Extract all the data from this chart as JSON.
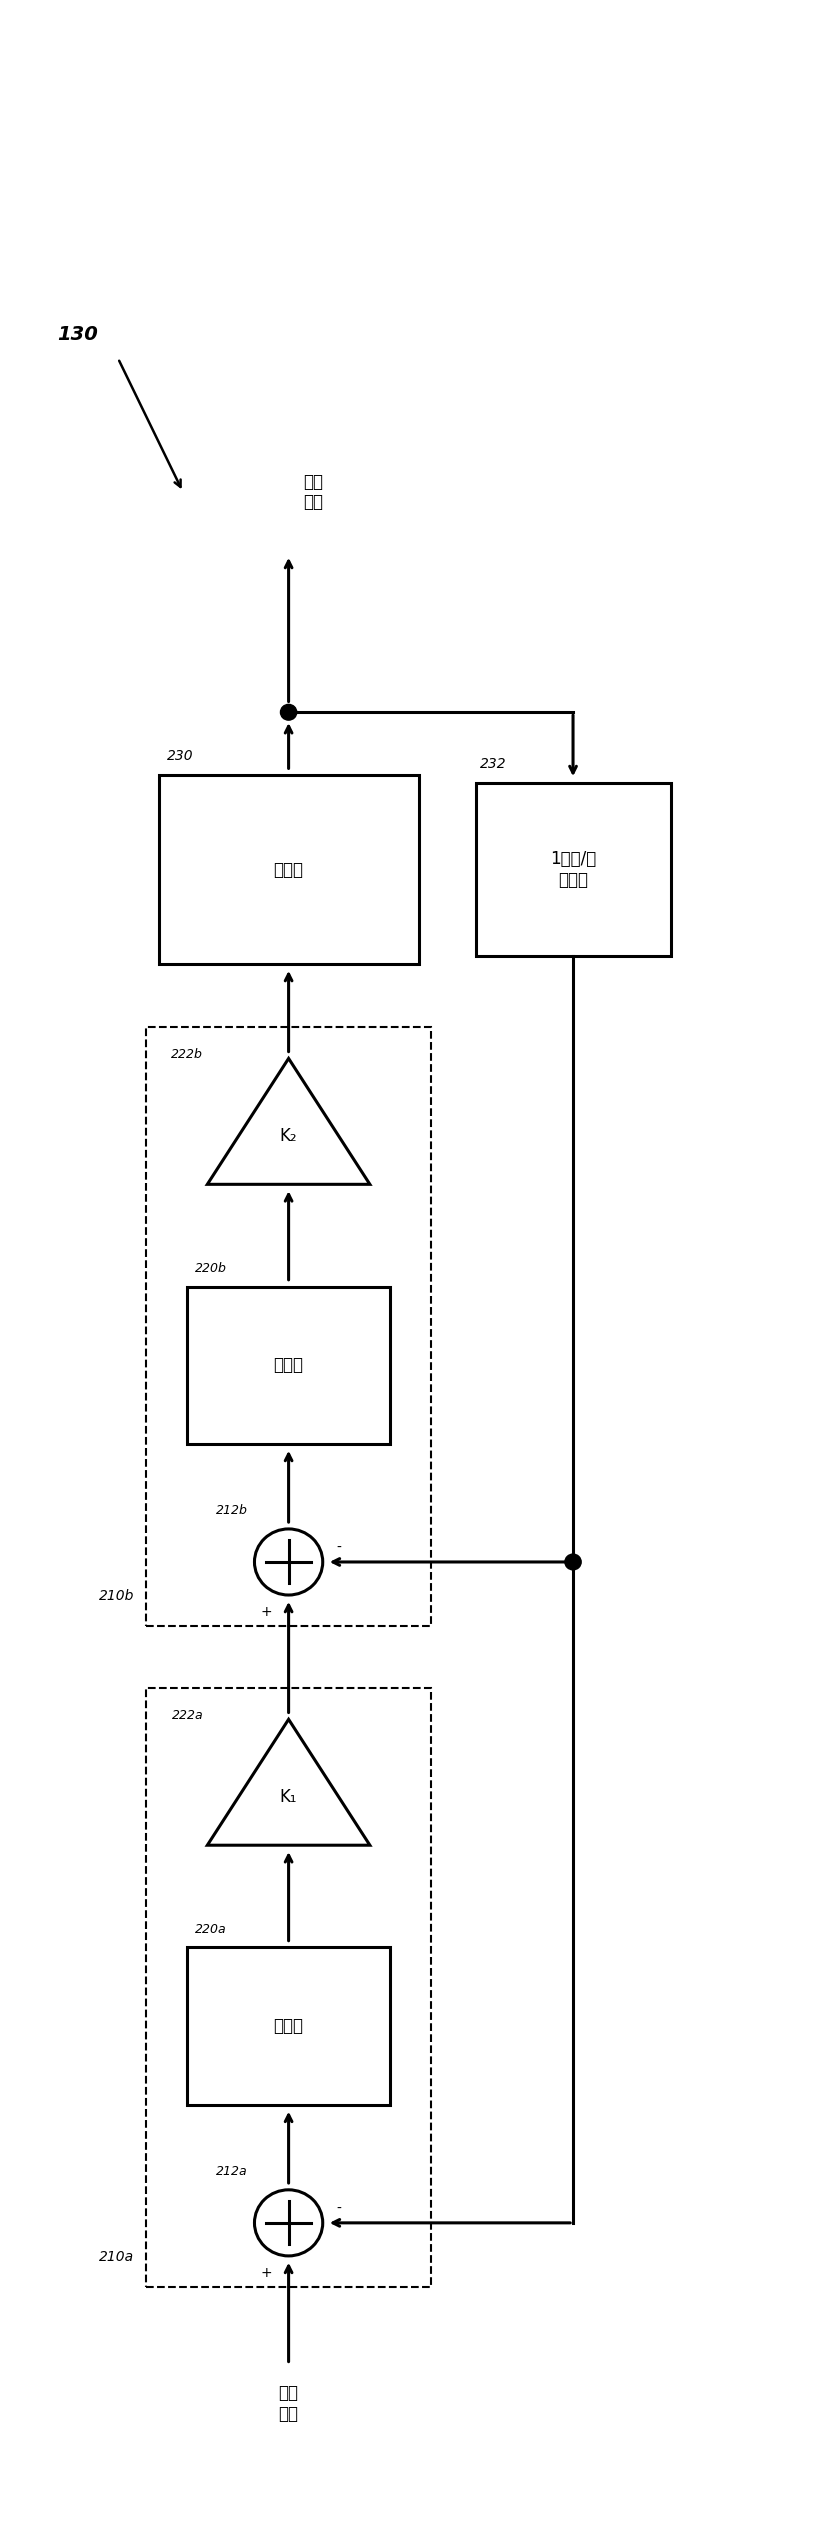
{
  "background_color": "#ffffff",
  "fig_width": 8.21,
  "fig_height": 25.26,
  "labels": {
    "digital_sample": "数字\n样本",
    "analog_signal": "模拟\n信号",
    "quantizer": "量化器",
    "dac": "1位数/模\n转换器",
    "integrator": "积分器",
    "label_130": "130",
    "label_230": "230",
    "label_232": "232",
    "label_210a": "210a",
    "label_210b": "210b",
    "label_212a": "212a",
    "label_212b": "212b",
    "label_220a": "220a",
    "label_220b": "220b",
    "label_222a": "222a",
    "label_222b": "222b",
    "k1": "K₁",
    "k2": "K₂"
  },
  "lw_main": 2.2,
  "lw_dash": 1.5,
  "font_size_block": 12,
  "font_size_label": 10,
  "font_size_small": 9,
  "font_size_130": 14
}
